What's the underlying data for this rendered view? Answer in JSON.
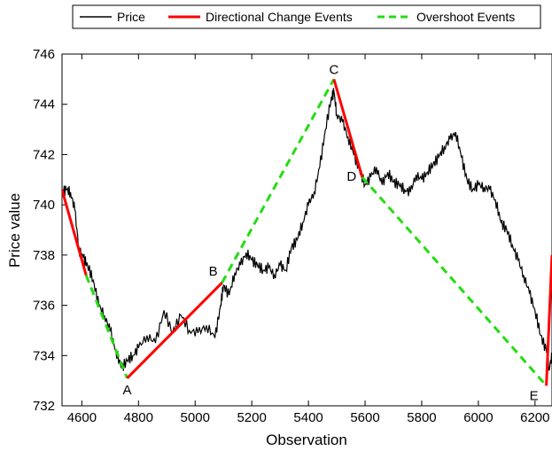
{
  "chart_data": {
    "type": "line",
    "title": "",
    "xlabel": "Observation",
    "ylabel": "Price value",
    "xlim": [
      4530,
      6260
    ],
    "ylim": [
      732,
      746
    ],
    "x_ticks": [
      4600,
      4800,
      5000,
      5200,
      5400,
      5600,
      5800,
      6000,
      6200
    ],
    "y_ticks": [
      732,
      734,
      736,
      738,
      740,
      742,
      744,
      746
    ],
    "grid": false,
    "legend": {
      "placement": "top-outside",
      "entries": [
        "Price",
        "Directional Change Events",
        "Overshoot Events"
      ]
    },
    "colors": {
      "price": "#000000",
      "dc": "#ff0000",
      "os": "#22dd11"
    },
    "series": [
      {
        "name": "Price",
        "x": [
          4530,
          4545,
          4560,
          4575,
          4590,
          4605,
          4620,
          4640,
          4660,
          4680,
          4700,
          4720,
          4740,
          4760,
          4780,
          4800,
          4830,
          4860,
          4890,
          4920,
          4950,
          4980,
          5010,
          5040,
          5070,
          5090,
          5100,
          5120,
          5140,
          5160,
          5180,
          5200,
          5220,
          5240,
          5260,
          5280,
          5300,
          5320,
          5340,
          5360,
          5380,
          5400,
          5420,
          5440,
          5460,
          5480,
          5490,
          5500,
          5520,
          5540,
          5560,
          5580,
          5600,
          5620,
          5640,
          5660,
          5680,
          5700,
          5720,
          5740,
          5760,
          5780,
          5800,
          5820,
          5840,
          5860,
          5880,
          5900,
          5920,
          5940,
          5960,
          5980,
          6000,
          6020,
          6040,
          6060,
          6080,
          6100,
          6120,
          6140,
          6160,
          6180,
          6200,
          6220,
          6240,
          6250,
          6260
        ],
        "y": [
          740.5,
          740.6,
          740.5,
          739.8,
          738.2,
          737.9,
          737.6,
          737.0,
          736.0,
          735.6,
          735.0,
          734.2,
          733.5,
          733.8,
          734.0,
          734.3,
          734.8,
          734.5,
          735.8,
          734.9,
          735.6,
          735.0,
          734.9,
          735.2,
          734.7,
          736.0,
          736.8,
          736.4,
          737.3,
          737.6,
          738.1,
          737.8,
          737.6,
          737.4,
          737.5,
          737.2,
          737.6,
          737.4,
          738.3,
          738.6,
          739.3,
          740.0,
          740.5,
          741.5,
          743.0,
          744.2,
          744.5,
          743.6,
          743.3,
          742.7,
          742.0,
          741.4,
          740.8,
          741.1,
          741.5,
          740.8,
          741.3,
          740.9,
          740.8,
          740.6,
          740.5,
          741.2,
          741.0,
          741.3,
          741.6,
          741.9,
          742.3,
          742.6,
          742.9,
          741.9,
          741.0,
          740.6,
          740.8,
          740.7,
          740.6,
          740.2,
          739.3,
          739.0,
          738.4,
          737.8,
          737.2,
          736.5,
          735.8,
          734.8,
          734.2,
          733.5,
          734.0
        ]
      },
      {
        "name": "Directional Change Events",
        "segments": [
          [
            [
              4530,
              740.6
            ],
            [
              4615,
              737.2
            ]
          ],
          [
            [
              4760,
              733.1
            ],
            [
              5095,
              736.9
            ]
          ],
          [
            [
              5490,
              745.0
            ],
            [
              5590,
              741.1
            ]
          ],
          [
            [
              6240,
              732.8
            ],
            [
              6260,
              738.0
            ]
          ]
        ]
      },
      {
        "name": "Overshoot Events",
        "segments": [
          [
            [
              4615,
              737.2
            ],
            [
              4760,
              733.1
            ]
          ],
          [
            [
              5095,
              736.9
            ],
            [
              5490,
              745.0
            ]
          ],
          [
            [
              5590,
              741.1
            ],
            [
              6240,
              732.8
            ]
          ]
        ]
      }
    ],
    "annotations": [
      {
        "text": "A",
        "x": 4760,
        "y": 733.1,
        "pos": "below"
      },
      {
        "text": "B",
        "x": 5095,
        "y": 736.9,
        "pos": "above-left"
      },
      {
        "text": "C",
        "x": 5490,
        "y": 745.0,
        "pos": "above"
      },
      {
        "text": "D",
        "x": 5590,
        "y": 741.1,
        "pos": "left"
      },
      {
        "text": "E",
        "x": 6240,
        "y": 732.8,
        "pos": "below-left"
      }
    ]
  }
}
